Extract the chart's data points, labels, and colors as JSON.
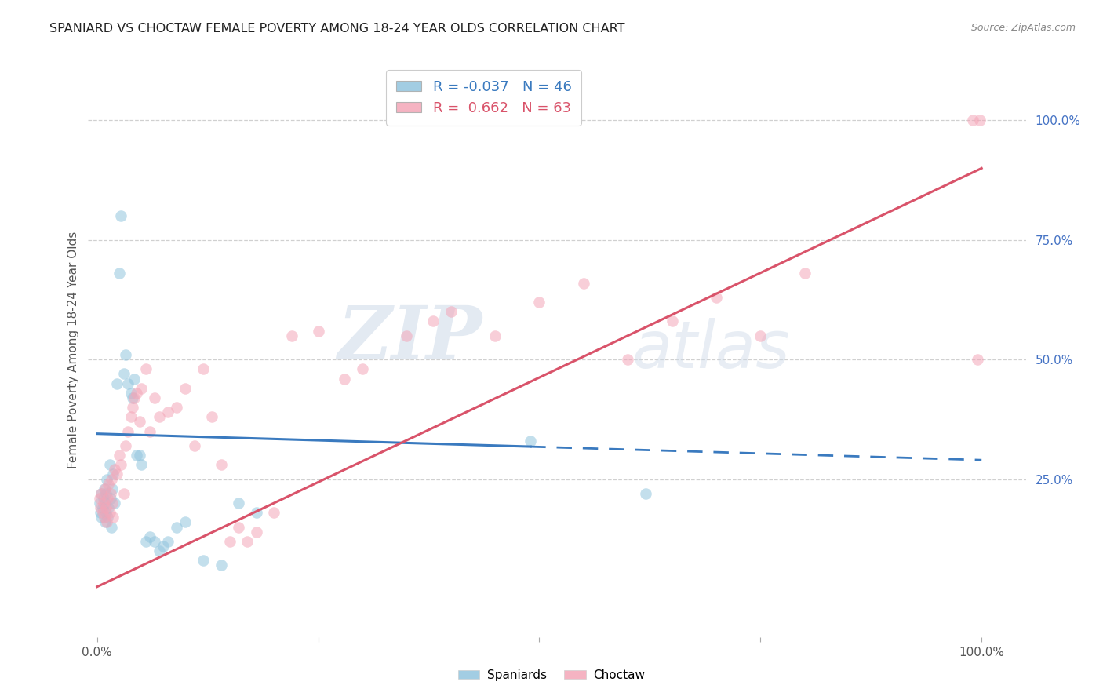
{
  "title": "SPANIARD VS CHOCTAW FEMALE POVERTY AMONG 18-24 YEAR OLDS CORRELATION CHART",
  "source": "Source: ZipAtlas.com",
  "ylabel": "Female Poverty Among 18-24 Year Olds",
  "xlim": [
    -0.01,
    1.05
  ],
  "ylim": [
    -0.08,
    1.12
  ],
  "xticks": [
    0,
    0.25,
    0.5,
    0.75,
    1.0
  ],
  "xtick_labels": [
    "0.0%",
    "",
    "",
    "",
    "100.0%"
  ],
  "ytick_labels_right": [
    "100.0%",
    "75.0%",
    "50.0%",
    "25.0%"
  ],
  "ytick_vals_right": [
    1.0,
    0.75,
    0.5,
    0.25
  ],
  "legend_blue_r": "-0.037",
  "legend_blue_n": "46",
  "legend_pink_r": "0.662",
  "legend_pink_n": "63",
  "legend_label_blue": "Spaniards",
  "legend_label_pink": "Choctaw",
  "watermark_zip": "ZIP",
  "watermark_atlas": "atlas",
  "blue_color": "#92c5de",
  "pink_color": "#f4a6b8",
  "blue_line_color": "#3a7abf",
  "pink_line_color": "#d9536a",
  "background_color": "#ffffff",
  "grid_color": "#d0d0d0",
  "blue_line_start_x": 0.0,
  "blue_line_start_y": 0.345,
  "blue_line_solid_end_x": 0.49,
  "blue_line_end_x": 1.0,
  "blue_line_end_y": 0.29,
  "pink_line_start_x": 0.0,
  "pink_line_start_y": 0.025,
  "pink_line_end_x": 1.0,
  "pink_line_end_y": 0.9,
  "spaniard_x": [
    0.003,
    0.004,
    0.005,
    0.005,
    0.006,
    0.007,
    0.008,
    0.009,
    0.009,
    0.01,
    0.01,
    0.011,
    0.012,
    0.013,
    0.014,
    0.015,
    0.016,
    0.017,
    0.018,
    0.02,
    0.022,
    0.025,
    0.027,
    0.03,
    0.032,
    0.035,
    0.038,
    0.04,
    0.042,
    0.045,
    0.048,
    0.05,
    0.055,
    0.06,
    0.065,
    0.07,
    0.075,
    0.08,
    0.09,
    0.1,
    0.12,
    0.14,
    0.16,
    0.18,
    0.49,
    0.62
  ],
  "spaniard_y": [
    0.2,
    0.18,
    0.22,
    0.17,
    0.19,
    0.21,
    0.23,
    0.16,
    0.2,
    0.18,
    0.22,
    0.25,
    0.17,
    0.19,
    0.28,
    0.21,
    0.15,
    0.23,
    0.26,
    0.2,
    0.45,
    0.68,
    0.8,
    0.47,
    0.51,
    0.45,
    0.43,
    0.42,
    0.46,
    0.3,
    0.3,
    0.28,
    0.12,
    0.13,
    0.12,
    0.1,
    0.11,
    0.12,
    0.15,
    0.16,
    0.08,
    0.07,
    0.2,
    0.18,
    0.33,
    0.22
  ],
  "choctaw_x": [
    0.003,
    0.004,
    0.005,
    0.006,
    0.007,
    0.008,
    0.009,
    0.01,
    0.011,
    0.012,
    0.013,
    0.014,
    0.015,
    0.016,
    0.017,
    0.018,
    0.02,
    0.022,
    0.025,
    0.027,
    0.03,
    0.032,
    0.035,
    0.038,
    0.04,
    0.042,
    0.045,
    0.048,
    0.05,
    0.055,
    0.06,
    0.065,
    0.07,
    0.08,
    0.09,
    0.1,
    0.11,
    0.12,
    0.13,
    0.14,
    0.15,
    0.16,
    0.17,
    0.18,
    0.2,
    0.22,
    0.25,
    0.28,
    0.3,
    0.35,
    0.38,
    0.4,
    0.45,
    0.5,
    0.55,
    0.6,
    0.65,
    0.7,
    0.75,
    0.8,
    0.99,
    0.995,
    0.998
  ],
  "choctaw_y": [
    0.21,
    0.19,
    0.22,
    0.18,
    0.2,
    0.17,
    0.23,
    0.19,
    0.16,
    0.21,
    0.24,
    0.18,
    0.22,
    0.25,
    0.2,
    0.17,
    0.27,
    0.26,
    0.3,
    0.28,
    0.22,
    0.32,
    0.35,
    0.38,
    0.4,
    0.42,
    0.43,
    0.37,
    0.44,
    0.48,
    0.35,
    0.42,
    0.38,
    0.39,
    0.4,
    0.44,
    0.32,
    0.48,
    0.38,
    0.28,
    0.12,
    0.15,
    0.12,
    0.14,
    0.18,
    0.55,
    0.56,
    0.46,
    0.48,
    0.55,
    0.58,
    0.6,
    0.55,
    0.62,
    0.66,
    0.5,
    0.58,
    0.63,
    0.55,
    0.68,
    1.0,
    0.5,
    1.0
  ]
}
